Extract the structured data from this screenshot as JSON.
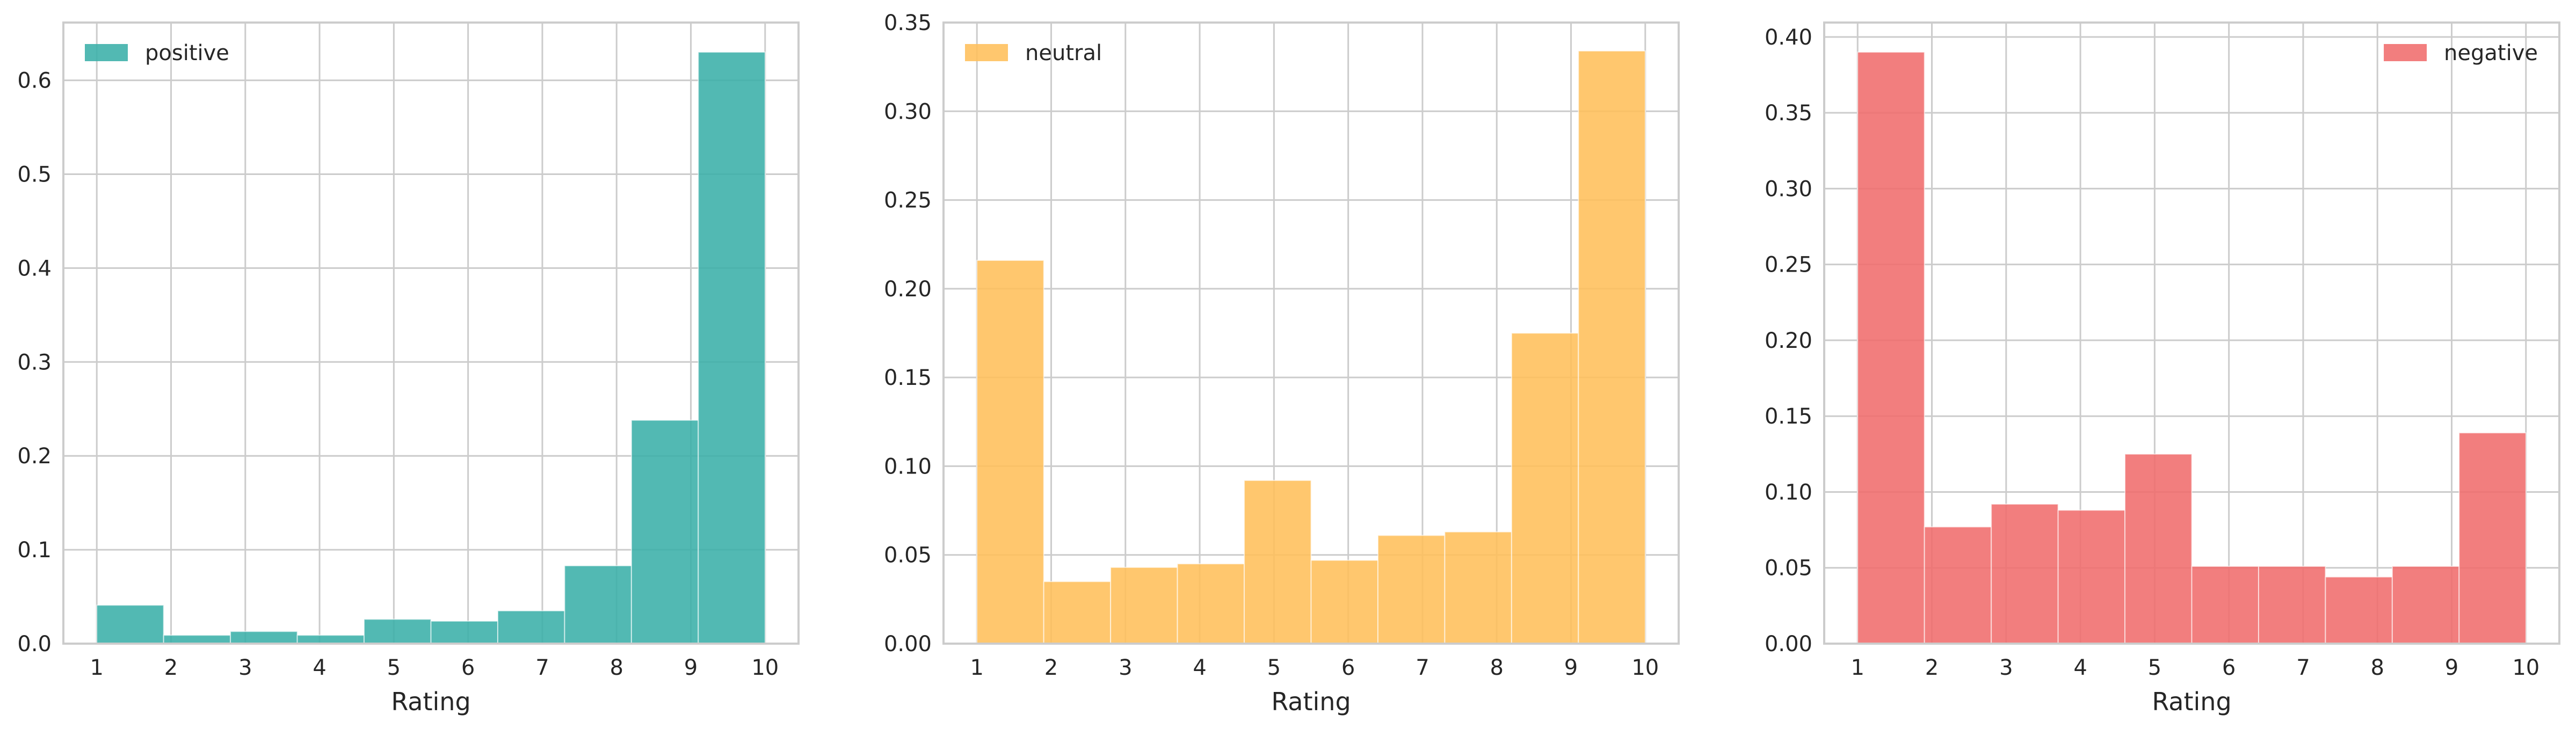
{
  "chart_data": [
    {
      "type": "bar",
      "histogram": true,
      "series": [
        {
          "name": "positive",
          "color": "#3AAFA9",
          "values": [
            0.041,
            0.009,
            0.013,
            0.009,
            0.026,
            0.024,
            0.035,
            0.083,
            0.238,
            0.63
          ]
        }
      ],
      "x_ticks": [
        1,
        2,
        3,
        4,
        5,
        6,
        7,
        8,
        9,
        10
      ],
      "y_ticks": [
        0.0,
        0.1,
        0.2,
        0.3,
        0.4,
        0.5,
        0.6
      ],
      "y_tick_labels": [
        "0.0",
        "0.1",
        "0.2",
        "0.3",
        "0.4",
        "0.5",
        "0.6"
      ],
      "xlim": [
        0.55,
        10.45
      ],
      "ylim": [
        0,
        0.6615
      ],
      "xlabel": "Rating",
      "ylabel": "",
      "legend_position": "top-left",
      "grid": true
    },
    {
      "type": "bar",
      "histogram": true,
      "series": [
        {
          "name": "neutral",
          "color": "#FFBF5A",
          "values": [
            0.216,
            0.035,
            0.043,
            0.045,
            0.092,
            0.047,
            0.061,
            0.063,
            0.175,
            0.334
          ]
        }
      ],
      "x_ticks": [
        1,
        2,
        3,
        4,
        5,
        6,
        7,
        8,
        9,
        10
      ],
      "y_ticks": [
        0.0,
        0.05,
        0.1,
        0.15,
        0.2,
        0.25,
        0.3,
        0.35
      ],
      "y_tick_labels": [
        "0.00",
        "0.05",
        "0.10",
        "0.15",
        "0.20",
        "0.25",
        "0.30",
        "0.35"
      ],
      "xlim": [
        0.55,
        10.45
      ],
      "ylim": [
        0,
        0.35
      ],
      "xlabel": "Rating",
      "ylabel": "",
      "legend_position": "top-left",
      "grid": true
    },
    {
      "type": "bar",
      "histogram": true,
      "series": [
        {
          "name": "negative",
          "color": "#F06C6C",
          "values": [
            0.39,
            0.077,
            0.092,
            0.088,
            0.125,
            0.051,
            0.051,
            0.044,
            0.051,
            0.139
          ]
        }
      ],
      "x_ticks": [
        1,
        2,
        3,
        4,
        5,
        6,
        7,
        8,
        9,
        10
      ],
      "y_ticks": [
        0.0,
        0.05,
        0.1,
        0.15,
        0.2,
        0.25,
        0.3,
        0.35,
        0.4
      ],
      "y_tick_labels": [
        "0.00",
        "0.05",
        "0.10",
        "0.15",
        "0.20",
        "0.25",
        "0.30",
        "0.35",
        "0.40"
      ],
      "xlim": [
        0.55,
        10.45
      ],
      "ylim": [
        0,
        0.4095
      ],
      "xlabel": "Rating",
      "ylabel": "",
      "legend_position": "top-right",
      "grid": true
    }
  ]
}
